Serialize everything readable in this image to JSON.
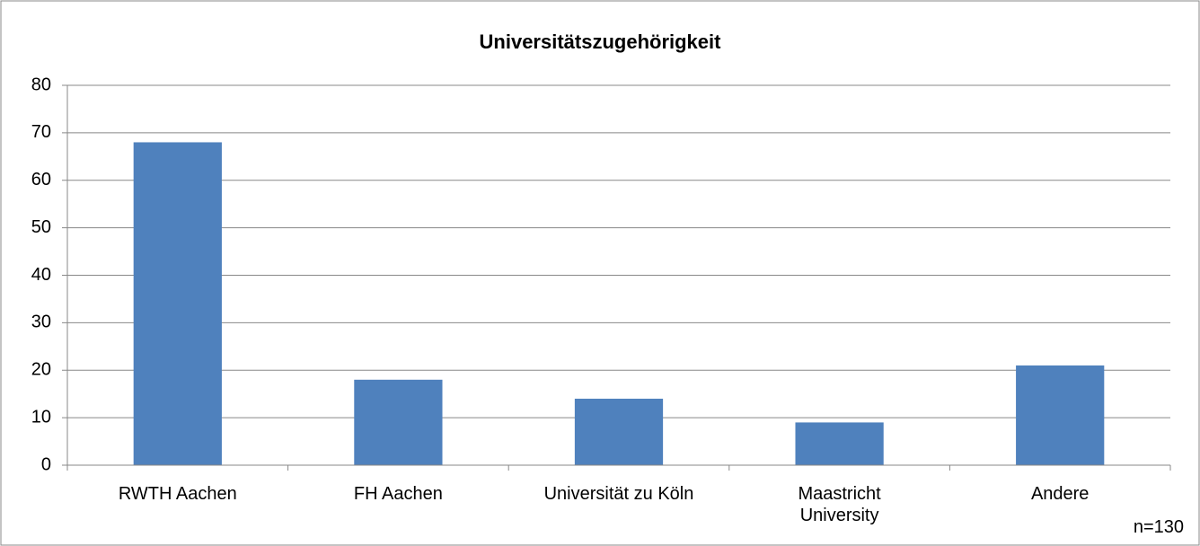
{
  "chart_data": {
    "type": "bar",
    "title": "Universitätszugehörigkeit",
    "categories": [
      "RWTH Aachen",
      "FH Aachen",
      "Universität zu Köln",
      "Maastricht\nUniversity",
      "Andere"
    ],
    "values": [
      68,
      18,
      14,
      9,
      21
    ],
    "color": "#4f81bd",
    "ylim": [
      0,
      80
    ],
    "yticks": [
      0,
      10,
      20,
      30,
      40,
      50,
      60,
      70,
      80
    ],
    "grid": true,
    "annotation": "n=130"
  }
}
